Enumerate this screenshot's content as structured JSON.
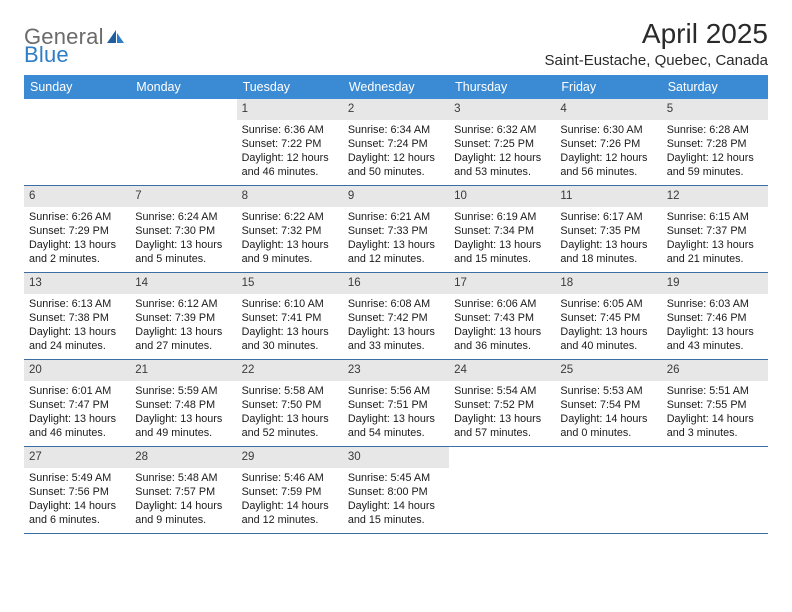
{
  "brand": {
    "general": "General",
    "blue": "Blue"
  },
  "title": {
    "month": "April 2025",
    "location": "Saint-Eustache, Quebec, Canada"
  },
  "colors": {
    "header_bg": "#3b8bd4",
    "header_text": "#ffffff",
    "daynum_bg": "#e7e7e7",
    "week_border": "#3b6fa3",
    "logo_general": "#6b6b6b",
    "logo_blue": "#2d7dc7",
    "body_text": "#1a1a1a"
  },
  "dayNames": [
    "Sunday",
    "Monday",
    "Tuesday",
    "Wednesday",
    "Thursday",
    "Friday",
    "Saturday"
  ],
  "weeks": [
    [
      {
        "day": "",
        "sunrise": "",
        "sunset": "",
        "daylight": ""
      },
      {
        "day": "",
        "sunrise": "",
        "sunset": "",
        "daylight": ""
      },
      {
        "day": "1",
        "sunrise": "Sunrise: 6:36 AM",
        "sunset": "Sunset: 7:22 PM",
        "daylight": "Daylight: 12 hours and 46 minutes."
      },
      {
        "day": "2",
        "sunrise": "Sunrise: 6:34 AM",
        "sunset": "Sunset: 7:24 PM",
        "daylight": "Daylight: 12 hours and 50 minutes."
      },
      {
        "day": "3",
        "sunrise": "Sunrise: 6:32 AM",
        "sunset": "Sunset: 7:25 PM",
        "daylight": "Daylight: 12 hours and 53 minutes."
      },
      {
        "day": "4",
        "sunrise": "Sunrise: 6:30 AM",
        "sunset": "Sunset: 7:26 PM",
        "daylight": "Daylight: 12 hours and 56 minutes."
      },
      {
        "day": "5",
        "sunrise": "Sunrise: 6:28 AM",
        "sunset": "Sunset: 7:28 PM",
        "daylight": "Daylight: 12 hours and 59 minutes."
      }
    ],
    [
      {
        "day": "6",
        "sunrise": "Sunrise: 6:26 AM",
        "sunset": "Sunset: 7:29 PM",
        "daylight": "Daylight: 13 hours and 2 minutes."
      },
      {
        "day": "7",
        "sunrise": "Sunrise: 6:24 AM",
        "sunset": "Sunset: 7:30 PM",
        "daylight": "Daylight: 13 hours and 5 minutes."
      },
      {
        "day": "8",
        "sunrise": "Sunrise: 6:22 AM",
        "sunset": "Sunset: 7:32 PM",
        "daylight": "Daylight: 13 hours and 9 minutes."
      },
      {
        "day": "9",
        "sunrise": "Sunrise: 6:21 AM",
        "sunset": "Sunset: 7:33 PM",
        "daylight": "Daylight: 13 hours and 12 minutes."
      },
      {
        "day": "10",
        "sunrise": "Sunrise: 6:19 AM",
        "sunset": "Sunset: 7:34 PM",
        "daylight": "Daylight: 13 hours and 15 minutes."
      },
      {
        "day": "11",
        "sunrise": "Sunrise: 6:17 AM",
        "sunset": "Sunset: 7:35 PM",
        "daylight": "Daylight: 13 hours and 18 minutes."
      },
      {
        "day": "12",
        "sunrise": "Sunrise: 6:15 AM",
        "sunset": "Sunset: 7:37 PM",
        "daylight": "Daylight: 13 hours and 21 minutes."
      }
    ],
    [
      {
        "day": "13",
        "sunrise": "Sunrise: 6:13 AM",
        "sunset": "Sunset: 7:38 PM",
        "daylight": "Daylight: 13 hours and 24 minutes."
      },
      {
        "day": "14",
        "sunrise": "Sunrise: 6:12 AM",
        "sunset": "Sunset: 7:39 PM",
        "daylight": "Daylight: 13 hours and 27 minutes."
      },
      {
        "day": "15",
        "sunrise": "Sunrise: 6:10 AM",
        "sunset": "Sunset: 7:41 PM",
        "daylight": "Daylight: 13 hours and 30 minutes."
      },
      {
        "day": "16",
        "sunrise": "Sunrise: 6:08 AM",
        "sunset": "Sunset: 7:42 PM",
        "daylight": "Daylight: 13 hours and 33 minutes."
      },
      {
        "day": "17",
        "sunrise": "Sunrise: 6:06 AM",
        "sunset": "Sunset: 7:43 PM",
        "daylight": "Daylight: 13 hours and 36 minutes."
      },
      {
        "day": "18",
        "sunrise": "Sunrise: 6:05 AM",
        "sunset": "Sunset: 7:45 PM",
        "daylight": "Daylight: 13 hours and 40 minutes."
      },
      {
        "day": "19",
        "sunrise": "Sunrise: 6:03 AM",
        "sunset": "Sunset: 7:46 PM",
        "daylight": "Daylight: 13 hours and 43 minutes."
      }
    ],
    [
      {
        "day": "20",
        "sunrise": "Sunrise: 6:01 AM",
        "sunset": "Sunset: 7:47 PM",
        "daylight": "Daylight: 13 hours and 46 minutes."
      },
      {
        "day": "21",
        "sunrise": "Sunrise: 5:59 AM",
        "sunset": "Sunset: 7:48 PM",
        "daylight": "Daylight: 13 hours and 49 minutes."
      },
      {
        "day": "22",
        "sunrise": "Sunrise: 5:58 AM",
        "sunset": "Sunset: 7:50 PM",
        "daylight": "Daylight: 13 hours and 52 minutes."
      },
      {
        "day": "23",
        "sunrise": "Sunrise: 5:56 AM",
        "sunset": "Sunset: 7:51 PM",
        "daylight": "Daylight: 13 hours and 54 minutes."
      },
      {
        "day": "24",
        "sunrise": "Sunrise: 5:54 AM",
        "sunset": "Sunset: 7:52 PM",
        "daylight": "Daylight: 13 hours and 57 minutes."
      },
      {
        "day": "25",
        "sunrise": "Sunrise: 5:53 AM",
        "sunset": "Sunset: 7:54 PM",
        "daylight": "Daylight: 14 hours and 0 minutes."
      },
      {
        "day": "26",
        "sunrise": "Sunrise: 5:51 AM",
        "sunset": "Sunset: 7:55 PM",
        "daylight": "Daylight: 14 hours and 3 minutes."
      }
    ],
    [
      {
        "day": "27",
        "sunrise": "Sunrise: 5:49 AM",
        "sunset": "Sunset: 7:56 PM",
        "daylight": "Daylight: 14 hours and 6 minutes."
      },
      {
        "day": "28",
        "sunrise": "Sunrise: 5:48 AM",
        "sunset": "Sunset: 7:57 PM",
        "daylight": "Daylight: 14 hours and 9 minutes."
      },
      {
        "day": "29",
        "sunrise": "Sunrise: 5:46 AM",
        "sunset": "Sunset: 7:59 PM",
        "daylight": "Daylight: 14 hours and 12 minutes."
      },
      {
        "day": "30",
        "sunrise": "Sunrise: 5:45 AM",
        "sunset": "Sunset: 8:00 PM",
        "daylight": "Daylight: 14 hours and 15 minutes."
      },
      {
        "day": "",
        "sunrise": "",
        "sunset": "",
        "daylight": ""
      },
      {
        "day": "",
        "sunrise": "",
        "sunset": "",
        "daylight": ""
      },
      {
        "day": "",
        "sunrise": "",
        "sunset": "",
        "daylight": ""
      }
    ]
  ]
}
